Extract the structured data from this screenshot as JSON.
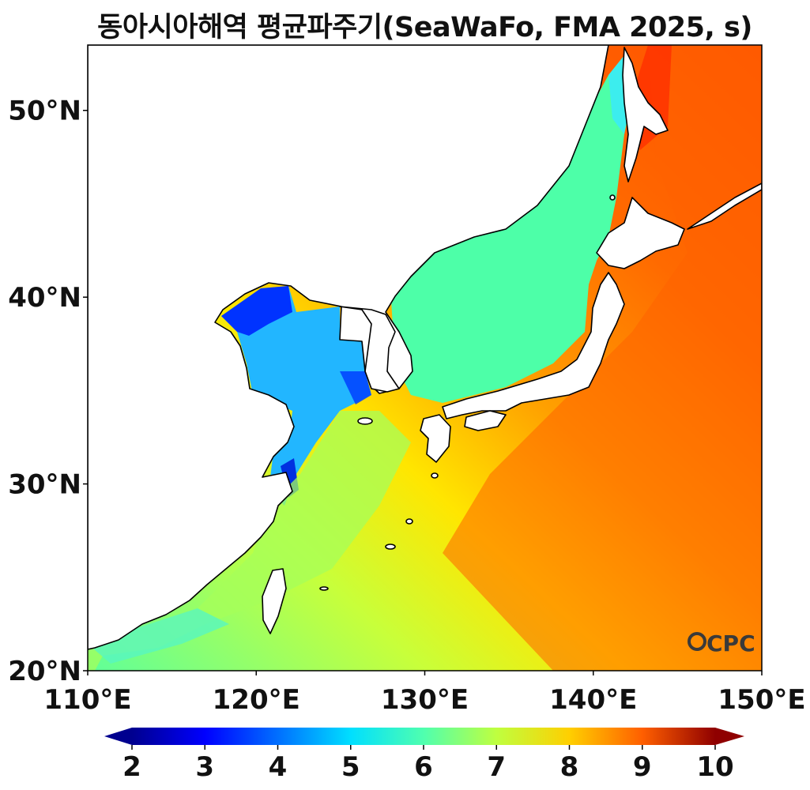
{
  "title": "동아시아해역 평균파주기(SeaWaFo, FMA 2025, s)",
  "map": {
    "lon_range": [
      110,
      150
    ],
    "lat_range": [
      20,
      53.5
    ],
    "x_ticks": [
      "110°E",
      "120°E",
      "130°E",
      "140°E",
      "150°E"
    ],
    "y_ticks": [
      "20°N",
      "30°N",
      "40°N",
      "50°N"
    ],
    "watermark": "OCPC"
  },
  "colorbar": {
    "ticks": [
      "2",
      "3",
      "4",
      "5",
      "6",
      "7",
      "8",
      "9",
      "10"
    ],
    "min": 2,
    "max": 10,
    "extend": "both",
    "colormap": "jet"
  },
  "colors": {
    "land": "#ffffff",
    "coastline": "#000000",
    "open_ocean": "#ff5a00",
    "watermark": "#3a3a3a"
  }
}
